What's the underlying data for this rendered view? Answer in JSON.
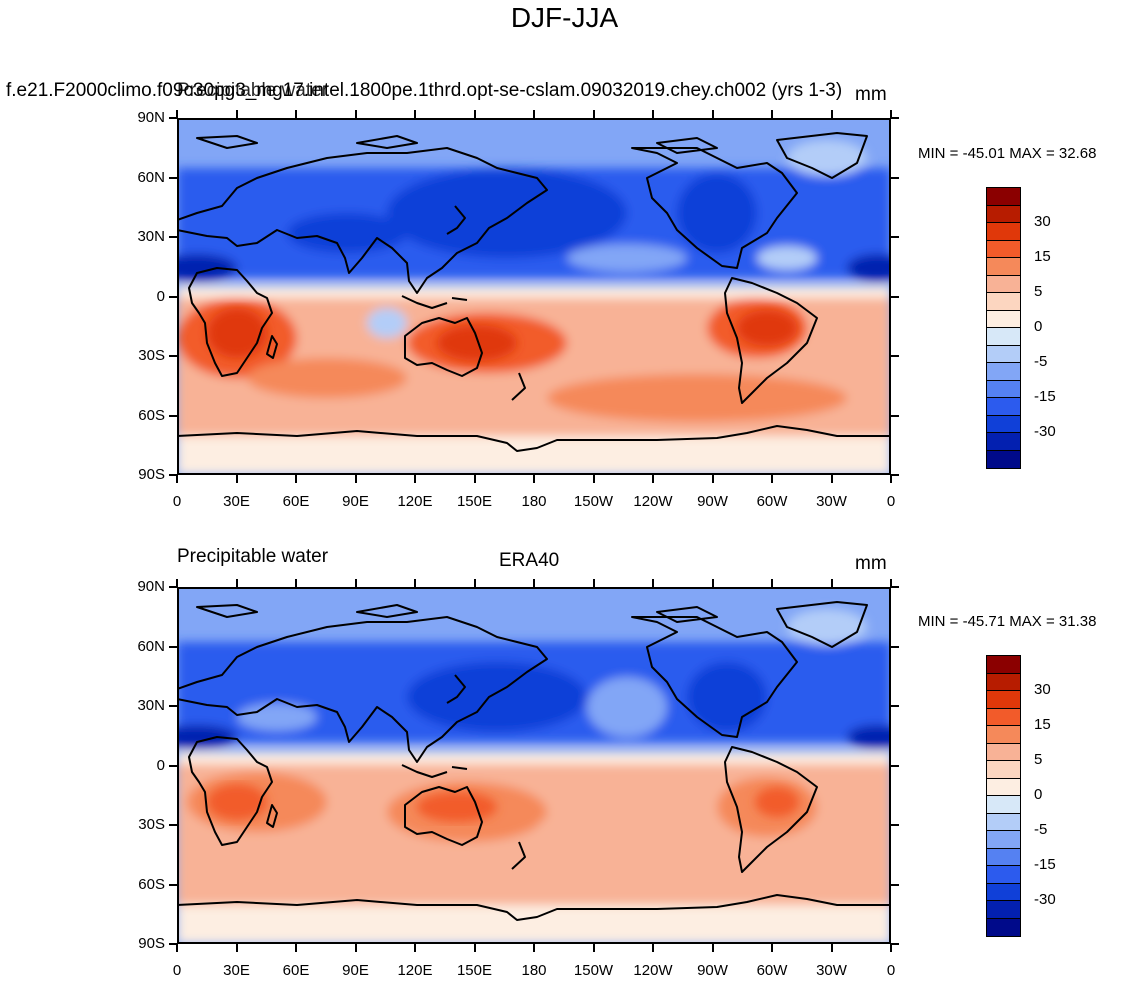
{
  "title": "DJF-JJA",
  "panels": [
    {
      "left_label": "f.e21.F2000climo.f09c30pg3_mg17.intel.1800pe.1thrd.opt-se-cslam.09032019.chey.ch002 (yrs 1-3)",
      "overlay_label": "Precipitable water",
      "center_label": "",
      "units": "mm",
      "min_max": "MIN = -45.01 MAX =  32.68"
    },
    {
      "left_label": "Precipitable water",
      "overlay_label": "",
      "center_label": "ERA40",
      "units": "mm",
      "min_max": "MIN = -45.71 MAX =  31.38"
    }
  ],
  "lat_labels": [
    "90N",
    "60N",
    "30N",
    "0",
    "30S",
    "60S",
    "90S"
  ],
  "lon_labels": [
    "0",
    "30E",
    "60E",
    "90E",
    "120E",
    "150E",
    "180",
    "150W",
    "120W",
    "90W",
    "60W",
    "30W",
    "0"
  ],
  "colorbar": {
    "labels": [
      "30",
      "15",
      "5",
      "0",
      "-5",
      "-15",
      "-30"
    ],
    "colors": [
      "#8b0000",
      "#b71c00",
      "#e0380a",
      "#f25b2a",
      "#f5895a",
      "#f8b296",
      "#fcd6c0",
      "#fdeee2",
      "#d7e8f8",
      "#b3cdf8",
      "#82a6f6",
      "#5581f2",
      "#2c5bee",
      "#1040d8",
      "#0320b0",
      "#000a8a"
    ]
  }
}
